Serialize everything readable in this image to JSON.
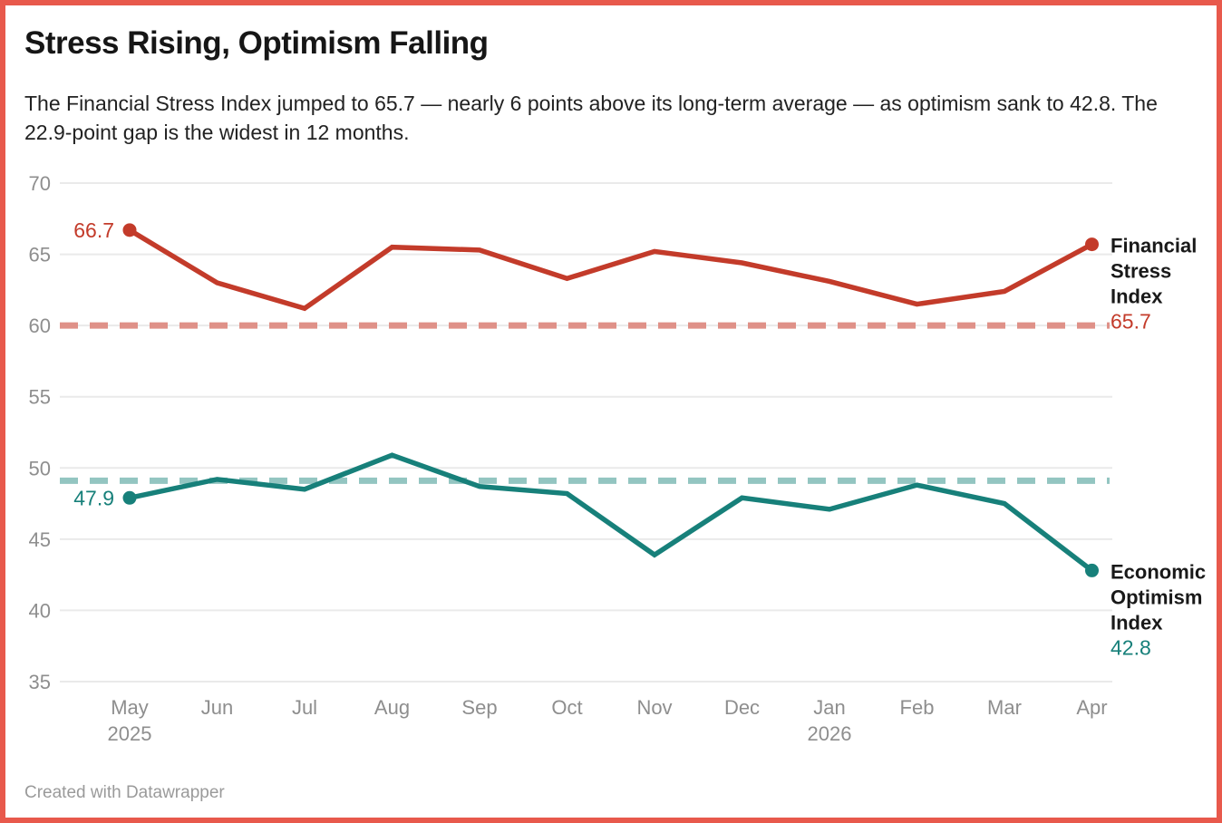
{
  "header": {
    "title": "Stress Rising, Optimism Falling",
    "subtitle": "The Financial Stress Index jumped to 65.7 — nearly 6 points above its long-term average — as optimism sank to 42.8. The 22.9-point gap is the widest in 12 months."
  },
  "footer": {
    "attribution": "Created with Datawrapper"
  },
  "colors": {
    "frame": "#e8594c",
    "stress_line": "#c33b2a",
    "stress_average_dash": "#df9188",
    "optimism_line": "#17807a",
    "optimism_average_dash": "#93c5c1",
    "grid": "#eaeaea",
    "axis_text": "#8e8e8e",
    "end_label_text": "#191919"
  },
  "chart_data": {
    "type": "line",
    "title": "Stress Rising, Optimism Falling",
    "x": [
      "May",
      "Jun",
      "Jul",
      "Aug",
      "Sep",
      "Oct",
      "Nov",
      "Dec",
      "Jan",
      "Feb",
      "Mar",
      "Apr"
    ],
    "x_year_labels": [
      {
        "index": 0,
        "year": "2025"
      },
      {
        "index": 8,
        "year": "2026"
      }
    ],
    "ylim": [
      35,
      70
    ],
    "yticks": [
      "70",
      "65",
      "60",
      "55",
      "50",
      "45",
      "40",
      "35"
    ],
    "grid": true,
    "legend_position": "end-of-line",
    "series": [
      {
        "name": "Financial Stress Index",
        "color": "#c33b2a",
        "values": [
          66.7,
          63.0,
          61.2,
          65.5,
          65.3,
          63.3,
          65.2,
          64.4,
          63.1,
          61.5,
          62.4,
          65.7
        ],
        "start_label": "66.7",
        "end_label_lines": [
          "Financial",
          "Stress",
          "Index"
        ],
        "end_value_label": "65.7"
      },
      {
        "name": "Economic Optimism Index",
        "color": "#17807a",
        "values": [
          47.9,
          49.2,
          48.5,
          50.9,
          48.7,
          48.2,
          43.9,
          47.9,
          47.1,
          48.8,
          47.5,
          42.8
        ],
        "start_label": "47.9",
        "end_label_lines": [
          "Economic",
          "Optimism",
          "Index"
        ],
        "end_value_label": "42.8"
      }
    ],
    "reference_lines": [
      {
        "label": "Financial Stress Index long-term average",
        "value": 60.0,
        "color": "#df9188"
      },
      {
        "label": "Economic Optimism Index long-term average",
        "value": 49.1,
        "color": "#93c5c1"
      }
    ]
  }
}
